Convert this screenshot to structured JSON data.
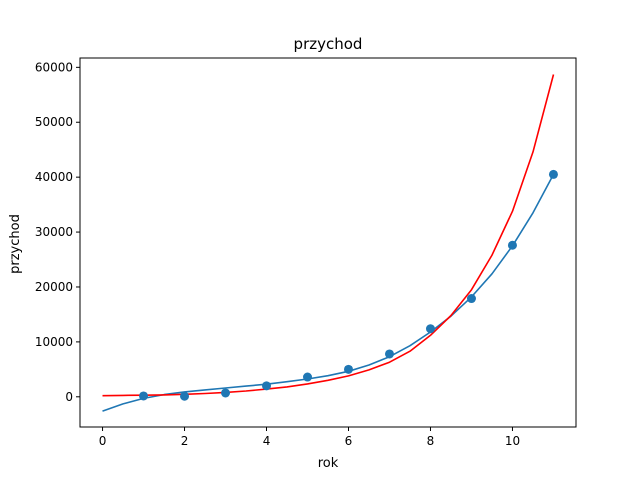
{
  "chart_data": {
    "type": "scatter",
    "title": "przychod",
    "xlabel": "rok",
    "ylabel": "przychod",
    "xlim": [
      -0.55,
      11.55
    ],
    "ylim": [
      -5500,
      61700
    ],
    "x_ticks": [
      0,
      2,
      4,
      6,
      8,
      10
    ],
    "y_ticks": [
      0,
      10000,
      20000,
      30000,
      40000,
      50000,
      60000
    ],
    "grid": false,
    "legend": "none",
    "series": [
      {
        "kind": "scatter",
        "color": "#1f77b4",
        "x": [
          1,
          2,
          3,
          4,
          5,
          6,
          7,
          8,
          9,
          10,
          11
        ],
        "y": [
          150,
          100,
          700,
          2000,
          3600,
          5000,
          7800,
          12400,
          17900,
          27600,
          40500
        ]
      },
      {
        "kind": "line",
        "color": "#1f77b4",
        "x": [
          0,
          0.5,
          1,
          1.5,
          2,
          2.5,
          3,
          3.5,
          4,
          4.5,
          5,
          5.5,
          6,
          6.5,
          7,
          7.5,
          8,
          8.5,
          9,
          9.5,
          10,
          10.5,
          11
        ],
        "y": [
          -2600,
          -1300,
          -300,
          400,
          900,
          1250,
          1600,
          1950,
          2300,
          2750,
          3250,
          3850,
          4650,
          5800,
          7300,
          9300,
          11800,
          14700,
          18200,
          22400,
          27500,
          33500,
          40500
        ]
      },
      {
        "kind": "line",
        "color": "#ff0000",
        "x": [
          0,
          0.5,
          1,
          1.5,
          2,
          2.5,
          3,
          3.5,
          4,
          4.5,
          5,
          5.5,
          6,
          6.5,
          7,
          7.5,
          8,
          8.5,
          9,
          9.5,
          10,
          10.5,
          11
        ],
        "y": [
          200,
          250,
          300,
          350,
          450,
          600,
          800,
          1050,
          1400,
          1800,
          2350,
          3000,
          3800,
          4900,
          6300,
          8300,
          11200,
          14800,
          19500,
          25800,
          33800,
          44600,
          58700
        ]
      }
    ]
  }
}
